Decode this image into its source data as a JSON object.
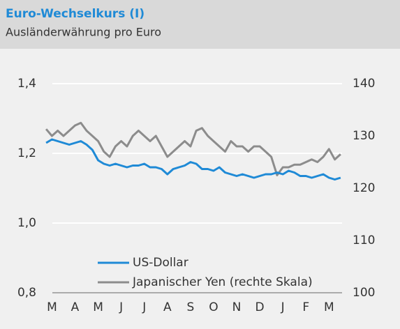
{
  "chart_data": {
    "type": "line",
    "title": "Euro-Wechselkurs (I)",
    "subtitle": "Ausländerwährung pro Euro",
    "categories": [
      null,
      "M",
      null,
      null,
      null,
      "A",
      null,
      null,
      null,
      "M",
      null,
      null,
      null,
      "J",
      null,
      null,
      null,
      "J",
      null,
      null,
      null,
      "A",
      null,
      null,
      null,
      "S",
      null,
      null,
      null,
      "O",
      null,
      null,
      null,
      "N",
      null,
      null,
      null,
      "D",
      null,
      null,
      null,
      "J",
      null,
      null,
      null,
      "F",
      null,
      null,
      null,
      "M",
      null,
      null
    ],
    "series": [
      {
        "name": "US-Dollar",
        "color": "#1f8ad6",
        "axis": "y",
        "values": [
          1.23,
          1.24,
          1.235,
          1.23,
          1.225,
          1.23,
          1.235,
          1.225,
          1.21,
          1.18,
          1.17,
          1.165,
          1.17,
          1.165,
          1.16,
          1.165,
          1.165,
          1.17,
          1.16,
          1.16,
          1.155,
          1.14,
          1.155,
          1.16,
          1.165,
          1.175,
          1.17,
          1.155,
          1.155,
          1.15,
          1.16,
          1.145,
          1.14,
          1.135,
          1.14,
          1.135,
          1.13,
          1.135,
          1.14,
          1.14,
          1.145,
          1.14,
          1.15,
          1.145,
          1.135,
          1.135,
          1.13,
          1.135,
          1.14,
          1.13,
          1.125,
          1.13
        ]
      },
      {
        "name": "Japanischer Yen (rechte Skala)",
        "color": "#8c8c8c",
        "axis": "y2",
        "values": [
          131.3,
          130,
          131,
          130,
          131,
          132,
          132.5,
          131,
          130,
          129,
          127,
          126,
          128,
          129,
          128,
          130,
          131,
          130,
          129,
          130,
          128,
          126,
          127,
          128,
          129,
          128,
          131,
          131.5,
          130,
          129,
          128,
          127,
          129,
          128,
          128,
          127,
          128,
          128,
          127,
          126,
          122.5,
          124,
          124,
          124.5,
          124.5,
          125,
          125.5,
          125,
          126,
          127.5,
          125.5,
          126.5
        ]
      }
    ],
    "ylim": [
      0.8,
      1.4
    ],
    "yticks": [
      {
        "value": 0.8,
        "label": "0,8"
      },
      {
        "value": 1.0,
        "label": "1,0"
      },
      {
        "value": 1.2,
        "label": "1,2"
      },
      {
        "value": 1.4,
        "label": "1,4"
      }
    ],
    "y2lim": [
      100,
      140
    ],
    "y2ticks": [
      100,
      110,
      120,
      130,
      140
    ],
    "grid": true
  }
}
